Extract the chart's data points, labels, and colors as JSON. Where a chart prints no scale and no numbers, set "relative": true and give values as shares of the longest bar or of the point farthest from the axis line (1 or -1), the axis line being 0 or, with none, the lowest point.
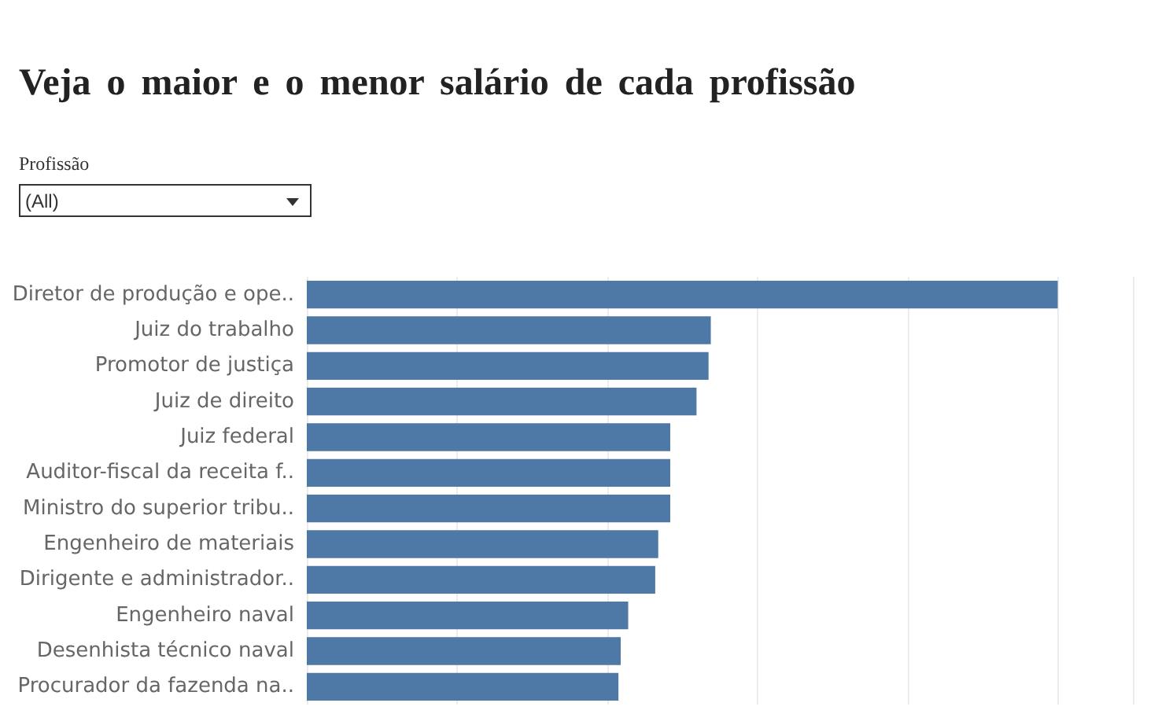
{
  "chart_data": {
    "type": "bar",
    "orientation": "horizontal",
    "relative": true,
    "title": "Veja o maior e o menor salário de cada profissão",
    "annotations": [
      "Profissão",
      "(All)"
    ],
    "categories": [
      "Diretor de produção e ope..",
      "Juiz do trabalho",
      "Promotor de justiça",
      "Juiz de direito",
      "Juiz federal",
      "Auditor-fiscal da receita f..",
      "Ministro do superior tribu..",
      "Engenheiro de materiais",
      "Dirigente e administrador..",
      "Engenheiro naval",
      "Desenhista técnico naval",
      "Procurador da fazenda na.."
    ],
    "values": [
      1,
      0.538,
      0.535,
      0.519,
      0.484,
      0.484,
      0.484,
      0.468,
      0.464,
      0.428,
      0.418,
      0.415
    ],
    "color": "#4e79a7",
    "grid": "x"
  }
}
